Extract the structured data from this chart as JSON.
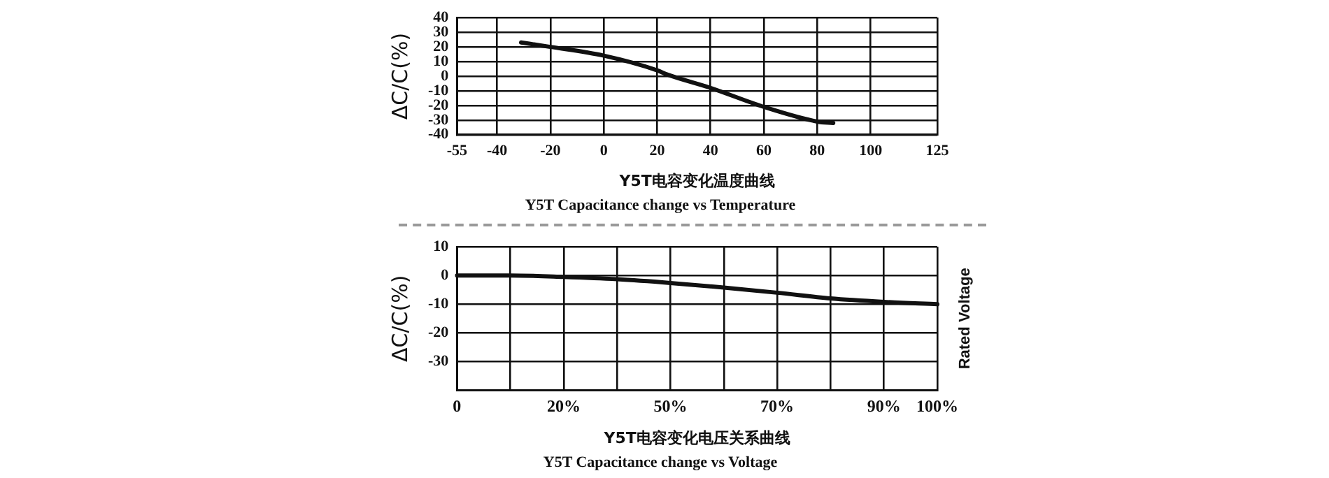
{
  "chart_data": [
    {
      "type": "line",
      "title": "Y5T Capacitance change vs Temperature",
      "xlabel": "Y5T电容变化温度曲线",
      "ylabel": "ΔC/C(%)",
      "x": [
        -31,
        -20,
        0,
        20,
        24,
        40,
        60,
        80,
        86
      ],
      "series": [
        {
          "color": "#111111",
          "values": [
            23,
            20,
            14,
            4,
            1,
            -8,
            -21,
            -31,
            -32
          ]
        }
      ],
      "xlim": [
        -55,
        125
      ],
      "xticks": [
        -55,
        -40,
        -20,
        0,
        20,
        40,
        60,
        80,
        100,
        125
      ],
      "ylim": [
        -40,
        40
      ],
      "yticks": [
        -40,
        -30,
        -20,
        -10,
        0,
        10,
        20,
        30,
        40
      ],
      "grid": true,
      "legend": false,
      "marker": "none",
      "line_style": "solid"
    },
    {
      "type": "line",
      "title": "Y5T Capacitance change vs Voltage",
      "xlabel": "Y5T电容变化电压关系曲线",
      "ylabel": "ΔC/C(%)",
      "annotations": [
        "Rated Voltage"
      ],
      "categories": [
        "0",
        null,
        "20%",
        null,
        "50%",
        null,
        "70%",
        null,
        "90%",
        "100%"
      ],
      "series": [
        {
          "color": "#111111",
          "values": [
            0,
            0,
            -0.5,
            -1.3,
            -2.6,
            -4.2,
            -6,
            -8,
            -9.2,
            -10
          ]
        }
      ],
      "ylim": [
        -40,
        10
      ],
      "yticks": [
        -30,
        -20,
        -10,
        0,
        10
      ],
      "grid": true,
      "legend": false,
      "marker": "none",
      "line_style": "solid"
    }
  ]
}
